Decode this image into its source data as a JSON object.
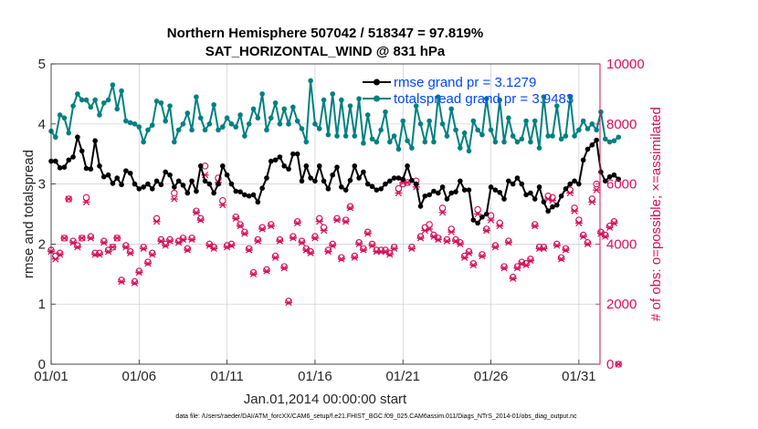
{
  "chart_data": {
    "type": "line",
    "title": "Northern Hemisphere 507042 / 518347 = 97.819%",
    "subtitle": "SAT_HORIZONTAL_WIND @ 831 hPa",
    "xlabel": "Jan.01,2014 00:00:00 start",
    "ylabel": "rmse and totalspread",
    "y2label": "# of obs: o=possible; ×=assimilated",
    "footer": "data file: /Users/raeder/DAI/ATM_forcXX/CAM6_setup/f.e21.FHIST_BGC.f09_025.CAM6assim.011/Diags_NTrS_2014-01/obs_diag_output.nc",
    "xlim": [
      1,
      32.2
    ],
    "ylim": [
      0,
      5
    ],
    "y2lim": [
      0,
      10000
    ],
    "x_ticks": [
      1,
      6,
      11,
      16,
      21,
      26,
      31
    ],
    "x_tick_labels": [
      "01/01",
      "01/06",
      "01/11",
      "01/16",
      "01/21",
      "01/26",
      "01/31"
    ],
    "y_ticks": [
      0,
      1,
      2,
      3,
      4,
      5
    ],
    "y_tick_labels": [
      "0",
      "1",
      "2",
      "3",
      "4",
      "5"
    ],
    "y2_ticks": [
      0,
      2000,
      4000,
      6000,
      8000,
      10000
    ],
    "y2_tick_labels": [
      "0",
      "2000",
      "4000",
      "6000",
      "8000",
      "10000"
    ],
    "grid": true,
    "legend_position": "top-right",
    "colors": {
      "rmse": "#000000",
      "spread": "#008080",
      "obs": "#d6105a",
      "legend_text": "#0047ff"
    },
    "x_start": 1,
    "x_step": 0.25,
    "series": [
      {
        "name": "rmse grand pr = 3.1279",
        "axis": "left",
        "values": [
          3.38,
          3.38,
          3.27,
          3.28,
          3.4,
          3.45,
          3.78,
          3.55,
          3.26,
          3.25,
          3.72,
          3.3,
          3.12,
          3.15,
          3.01,
          3.1,
          2.99,
          3.22,
          3.18,
          3.0,
          2.92,
          2.95,
          3.0,
          2.92,
          3.05,
          2.99,
          3.2,
          3.15,
          2.95,
          3.05,
          2.98,
          2.85,
          3.05,
          2.88,
          3.3,
          3.05,
          3.0,
          2.85,
          3.0,
          3.3,
          3.15,
          3.0,
          2.88,
          2.87,
          2.82,
          2.8,
          2.82,
          2.7,
          2.93,
          3.1,
          3.38,
          3.4,
          3.45,
          3.3,
          3.25,
          3.5,
          3.5,
          3.05,
          3.3,
          3.1,
          3.05,
          3.3,
          3.05,
          2.92,
          3.15,
          3.28,
          2.95,
          2.9,
          3.06,
          3.3,
          3.1,
          3.2,
          3.0,
          2.96,
          2.9,
          2.92,
          3.0,
          3.05,
          3.1,
          3.1,
          3.08,
          3.3,
          3.06,
          3.0,
          2.63,
          2.8,
          2.82,
          2.88,
          2.85,
          2.95,
          2.75,
          2.85,
          2.87,
          3.05,
          2.9,
          2.9,
          2.4,
          2.35,
          2.45,
          2.5,
          2.95,
          2.9,
          2.86,
          2.75,
          3.05,
          3.0,
          3.1,
          3.0,
          2.82,
          2.85,
          2.75,
          2.95,
          2.7,
          2.55,
          2.62,
          2.65,
          2.8,
          2.92,
          3.0,
          3.05,
          3.0,
          3.4,
          3.58,
          3.65,
          3.73,
          3.2,
          3.05,
          3.12,
          3.15,
          3.08
        ]
      },
      {
        "name": "totalspread grand pr = 3.9483",
        "axis": "left",
        "values": [
          3.88,
          3.78,
          4.15,
          4.1,
          3.85,
          4.3,
          4.5,
          4.4,
          4.4,
          4.28,
          4.4,
          4.15,
          4.35,
          4.4,
          4.65,
          4.25,
          4.55,
          4.05,
          4.02,
          4.0,
          3.95,
          3.7,
          3.9,
          3.98,
          4.38,
          4.35,
          4.05,
          4.3,
          3.7,
          3.9,
          4.0,
          4.18,
          3.9,
          4.45,
          4.1,
          3.9,
          4.0,
          4.32,
          3.9,
          3.95,
          4.1,
          4.0,
          3.95,
          4.15,
          3.8,
          4.0,
          4.25,
          4.1,
          4.5,
          3.9,
          4.1,
          4.35,
          4.0,
          4.25,
          4.0,
          4.28,
          4.05,
          3.92,
          3.7,
          4.72,
          4.0,
          3.92,
          4.4,
          3.82,
          4.5,
          3.8,
          4.4,
          3.8,
          4.3,
          3.8,
          4.42,
          3.68,
          4.15,
          3.75,
          3.7,
          3.9,
          4.2,
          3.7,
          3.8,
          3.58,
          4.05,
          3.72,
          3.6,
          4.3,
          4.0,
          3.7,
          4.05,
          3.7,
          4.45,
          4.0,
          3.8,
          4.25,
          3.9,
          3.6,
          3.85,
          3.55,
          4.05,
          3.9,
          3.82,
          4.42,
          3.9,
          3.7,
          4.4,
          3.7,
          4.1,
          3.8,
          3.7,
          3.75,
          4.05,
          3.7,
          4.05,
          3.6,
          4.45,
          3.8,
          3.8,
          4.3,
          3.75,
          3.8,
          4.45,
          3.8,
          3.9,
          4.05,
          3.92,
          4.0,
          3.9,
          4.2,
          3.75,
          3.7,
          3.72,
          3.78
        ]
      },
      {
        "name": "obs possible",
        "axis": "right",
        "marker": "o",
        "values": [
          3800,
          3600,
          3700,
          4200,
          5500,
          4100,
          3950,
          4200,
          5550,
          4250,
          3700,
          3700,
          4100,
          3800,
          3900,
          4200,
          2800,
          3950,
          3750,
          2750,
          3100,
          3900,
          3400,
          3700,
          4850,
          4150,
          4000,
          4150,
          5700,
          4100,
          4200,
          3850,
          4200,
          5100,
          4850,
          6600,
          4000,
          3900,
          6200,
          5450,
          3950,
          4000,
          4900,
          4650,
          4400,
          3850,
          3050,
          4150,
          4550,
          3150,
          4650,
          3600,
          4150,
          3250,
          2100,
          4250,
          4750,
          4100,
          3850,
          3750,
          4250,
          4850,
          4550,
          3800,
          4000,
          4850,
          3550,
          4800,
          5250,
          3600,
          4050,
          3850,
          4400,
          4000,
          3800,
          3800,
          3800,
          3700,
          3900,
          5850,
          6000,
          6050,
          3900,
          6100,
          4250,
          4550,
          4650,
          4300,
          4200,
          5200,
          4150,
          4500,
          4150,
          4050,
          3600,
          3750,
          3350,
          5150,
          3650,
          4500,
          4950,
          3950,
          4700,
          3250,
          4100,
          2900,
          3250,
          3400,
          3350,
          3500,
          4650,
          3900,
          3900,
          5600,
          5550,
          4000,
          3550,
          3850,
          5800,
          5200,
          4800,
          4300,
          4050,
          5500,
          6000,
          4400,
          4300,
          4600,
          4750,
          0
        ]
      },
      {
        "name": "obs assimilated",
        "axis": "right",
        "marker": "x",
        "values": [
          3750,
          3500,
          3650,
          4200,
          5500,
          4050,
          3900,
          4200,
          5400,
          4200,
          3650,
          3650,
          4050,
          3750,
          3900,
          4200,
          2750,
          3900,
          3700,
          2700,
          3050,
          3850,
          3350,
          3650,
          4750,
          4100,
          3950,
          4100,
          5500,
          4050,
          4150,
          3800,
          4150,
          5050,
          4800,
          6300,
          3950,
          3850,
          6050,
          5300,
          3900,
          3950,
          4850,
          4600,
          4350,
          3800,
          3000,
          4100,
          4500,
          3100,
          4600,
          3550,
          4100,
          3200,
          2050,
          4200,
          4700,
          4050,
          3800,
          3700,
          4200,
          4750,
          4450,
          3750,
          3950,
          4800,
          3500,
          4750,
          5200,
          3550,
          4000,
          3800,
          4350,
          3950,
          3750,
          3750,
          3750,
          3650,
          3850,
          5700,
          6050,
          6050,
          3850,
          5900,
          4200,
          4450,
          4500,
          4250,
          4150,
          5050,
          4100,
          4400,
          4100,
          4000,
          3550,
          3700,
          3300,
          5000,
          3600,
          4450,
          4800,
          3900,
          4600,
          3200,
          4050,
          2850,
          3200,
          3350,
          3300,
          3450,
          4600,
          3850,
          3850,
          5500,
          5450,
          3950,
          3500,
          3800,
          5700,
          5100,
          4700,
          4250,
          4000,
          5400,
          5800,
          4350,
          4250,
          4550,
          4700,
          0
        ]
      }
    ]
  }
}
